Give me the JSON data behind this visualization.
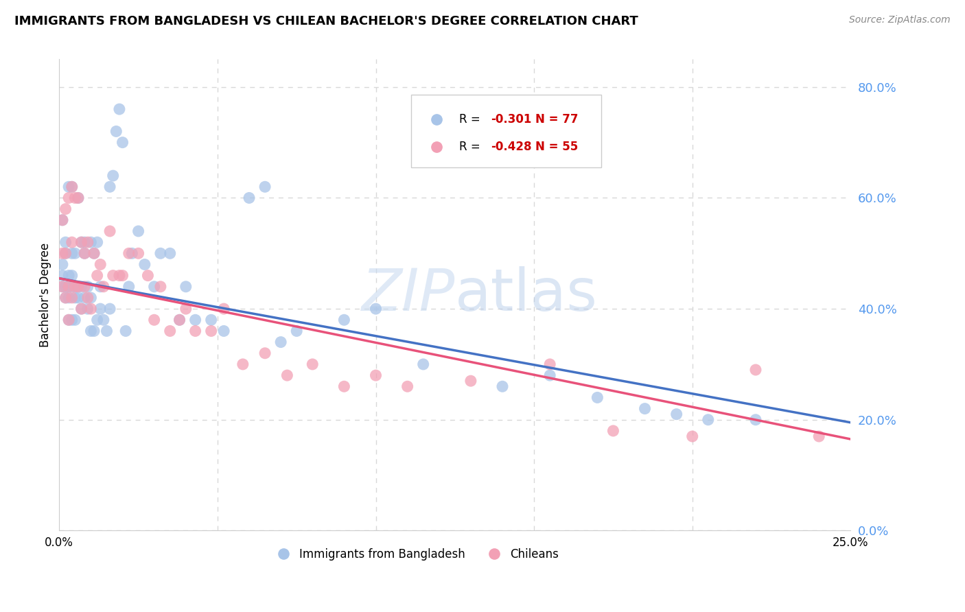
{
  "title": "IMMIGRANTS FROM BANGLADESH VS CHILEAN BACHELOR'S DEGREE CORRELATION CHART",
  "source": "Source: ZipAtlas.com",
  "ylabel": "Bachelor's Degree",
  "legend_blue_label": "Immigrants from Bangladesh",
  "legend_pink_label": "Chileans",
  "legend_blue_r": "-0.301",
  "legend_blue_n": "77",
  "legend_pink_r": "-0.428",
  "legend_pink_n": "55",
  "blue_color": "#a8c4e8",
  "pink_color": "#f2a0b5",
  "blue_line_color": "#4472c4",
  "pink_line_color": "#e8527a",
  "r_color": "#cc0000",
  "n_color": "#cc0000",
  "right_axis_color": "#5599ee",
  "background_color": "#ffffff",
  "grid_color": "#d8d8d8",
  "xlim": [
    0.0,
    0.25
  ],
  "ylim": [
    0.0,
    0.85
  ],
  "blue_scatter_x": [
    0.001,
    0.001,
    0.001,
    0.001,
    0.002,
    0.002,
    0.002,
    0.002,
    0.003,
    0.003,
    0.003,
    0.003,
    0.003,
    0.004,
    0.004,
    0.004,
    0.004,
    0.004,
    0.005,
    0.005,
    0.005,
    0.005,
    0.006,
    0.006,
    0.006,
    0.007,
    0.007,
    0.007,
    0.008,
    0.008,
    0.008,
    0.009,
    0.009,
    0.01,
    0.01,
    0.01,
    0.011,
    0.011,
    0.012,
    0.012,
    0.013,
    0.013,
    0.014,
    0.015,
    0.016,
    0.016,
    0.017,
    0.018,
    0.019,
    0.02,
    0.021,
    0.022,
    0.023,
    0.025,
    0.027,
    0.03,
    0.032,
    0.035,
    0.038,
    0.04,
    0.043,
    0.048,
    0.052,
    0.06,
    0.065,
    0.07,
    0.075,
    0.09,
    0.1,
    0.115,
    0.14,
    0.155,
    0.17,
    0.185,
    0.195,
    0.205,
    0.22
  ],
  "blue_scatter_y": [
    0.44,
    0.46,
    0.48,
    0.56,
    0.42,
    0.44,
    0.5,
    0.52,
    0.38,
    0.42,
    0.44,
    0.46,
    0.62,
    0.38,
    0.44,
    0.46,
    0.5,
    0.62,
    0.38,
    0.42,
    0.44,
    0.5,
    0.42,
    0.44,
    0.6,
    0.4,
    0.44,
    0.52,
    0.42,
    0.5,
    0.52,
    0.4,
    0.44,
    0.36,
    0.42,
    0.52,
    0.36,
    0.5,
    0.38,
    0.52,
    0.4,
    0.44,
    0.38,
    0.36,
    0.4,
    0.62,
    0.64,
    0.72,
    0.76,
    0.7,
    0.36,
    0.44,
    0.5,
    0.54,
    0.48,
    0.44,
    0.5,
    0.5,
    0.38,
    0.44,
    0.38,
    0.38,
    0.36,
    0.6,
    0.62,
    0.34,
    0.36,
    0.38,
    0.4,
    0.3,
    0.26,
    0.28,
    0.24,
    0.22,
    0.21,
    0.2,
    0.2
  ],
  "pink_scatter_x": [
    0.001,
    0.001,
    0.001,
    0.002,
    0.002,
    0.002,
    0.003,
    0.003,
    0.003,
    0.004,
    0.004,
    0.004,
    0.005,
    0.005,
    0.006,
    0.006,
    0.007,
    0.007,
    0.008,
    0.008,
    0.009,
    0.009,
    0.01,
    0.011,
    0.012,
    0.013,
    0.014,
    0.016,
    0.017,
    0.019,
    0.02,
    0.022,
    0.025,
    0.028,
    0.03,
    0.032,
    0.035,
    0.038,
    0.04,
    0.043,
    0.048,
    0.052,
    0.058,
    0.065,
    0.072,
    0.08,
    0.09,
    0.1,
    0.11,
    0.13,
    0.155,
    0.175,
    0.2,
    0.22,
    0.24
  ],
  "pink_scatter_y": [
    0.44,
    0.5,
    0.56,
    0.42,
    0.5,
    0.58,
    0.38,
    0.44,
    0.6,
    0.42,
    0.52,
    0.62,
    0.44,
    0.6,
    0.44,
    0.6,
    0.4,
    0.52,
    0.44,
    0.5,
    0.42,
    0.52,
    0.4,
    0.5,
    0.46,
    0.48,
    0.44,
    0.54,
    0.46,
    0.46,
    0.46,
    0.5,
    0.5,
    0.46,
    0.38,
    0.44,
    0.36,
    0.38,
    0.4,
    0.36,
    0.36,
    0.4,
    0.3,
    0.32,
    0.28,
    0.3,
    0.26,
    0.28,
    0.26,
    0.27,
    0.3,
    0.18,
    0.17,
    0.29,
    0.17
  ],
  "blue_line_x0": 0.0,
  "blue_line_y0": 0.455,
  "blue_line_x1": 0.25,
  "blue_line_y1": 0.195,
  "pink_line_x0": 0.0,
  "pink_line_y0": 0.455,
  "pink_line_x1": 0.25,
  "pink_line_y1": 0.165
}
